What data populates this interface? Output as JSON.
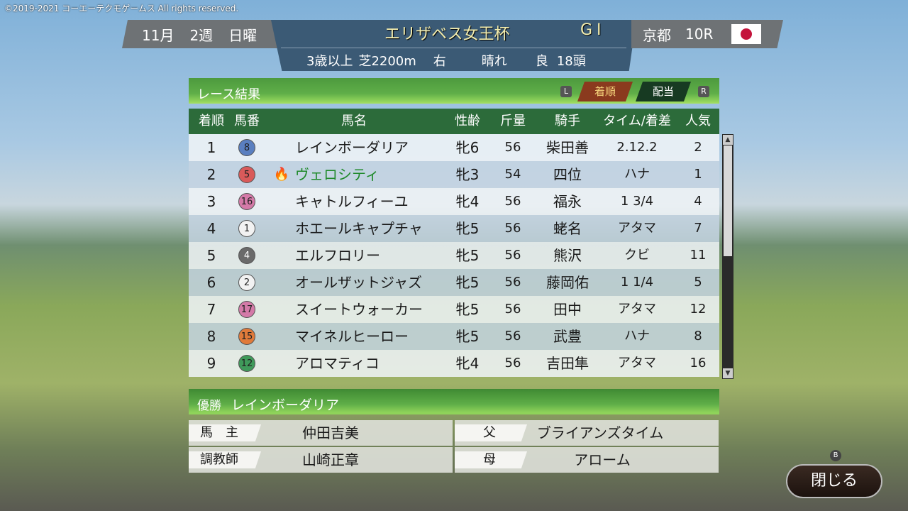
{
  "copyright": "©2019-2021 コーエーテクモゲームス All rights reserved.",
  "header": {
    "month": "11月",
    "week": "2週",
    "day": "日曜",
    "race_name": "エリザベス女王杯",
    "grade": "GⅠ",
    "conditions": [
      "3歳以上",
      "芝2200m",
      "右",
      "晴れ",
      "良",
      "18頭"
    ],
    "course": "京都",
    "race_no": "10R",
    "flag": "japan-flag"
  },
  "results_bar": {
    "title": "レース結果",
    "left_key": "L",
    "right_key": "R",
    "tabs": [
      {
        "label": "着順",
        "active": true
      },
      {
        "label": "配当",
        "active": false
      }
    ]
  },
  "columns": [
    "着順",
    "馬番",
    "馬名",
    "性齢",
    "斤量",
    "騎手",
    "タイム/着差",
    "人気"
  ],
  "gate_colors": {
    "white": "#f2f2f2",
    "black": "#6a6a6a",
    "red": "#d95a5a",
    "blue": "#5a7fc0",
    "yellow": "#e8d24a",
    "green": "#3f9a5a",
    "orange": "#e07a3a",
    "pink": "#d47aa8"
  },
  "rows": [
    {
      "pos": "1",
      "num": "8",
      "gate": "blue",
      "name": "レインボーダリア",
      "sexage": "牝6",
      "weight": "56",
      "jockey": "柴田善",
      "margin": "2.12.2",
      "pop": "2"
    },
    {
      "pos": "2",
      "num": "5",
      "gate": "red",
      "name": "ヴェロシティ",
      "highlight": true,
      "icon": "flame-icon",
      "sexage": "牝3",
      "weight": "54",
      "jockey": "四位",
      "margin": "ハナ",
      "pop": "1"
    },
    {
      "pos": "3",
      "num": "16",
      "gate": "pink",
      "name": "キャトルフィーユ",
      "sexage": "牝4",
      "weight": "56",
      "jockey": "福永",
      "margin": "1 3/4",
      "pop": "4"
    },
    {
      "pos": "4",
      "num": "1",
      "gate": "white",
      "name": "ホエールキャプチャ",
      "sexage": "牝5",
      "weight": "56",
      "jockey": "蛯名",
      "margin": "アタマ",
      "pop": "7"
    },
    {
      "pos": "5",
      "num": "4",
      "gate": "black",
      "name": "エルフロリー",
      "sexage": "牝5",
      "weight": "56",
      "jockey": "熊沢",
      "margin": "クビ",
      "pop": "11"
    },
    {
      "pos": "6",
      "num": "2",
      "gate": "white",
      "name": "オールザットジャズ",
      "sexage": "牝5",
      "weight": "56",
      "jockey": "藤岡佑",
      "margin": "1 1/4",
      "pop": "5"
    },
    {
      "pos": "7",
      "num": "17",
      "gate": "pink",
      "name": "スイートウォーカー",
      "sexage": "牝5",
      "weight": "56",
      "jockey": "田中",
      "margin": "アタマ",
      "pop": "12"
    },
    {
      "pos": "8",
      "num": "15",
      "gate": "orange",
      "name": "マイネルヒーロー",
      "sexage": "牝5",
      "weight": "56",
      "jockey": "武豊",
      "margin": "ハナ",
      "pop": "8"
    },
    {
      "pos": "9",
      "num": "12",
      "gate": "green",
      "name": "アロマティコ",
      "sexage": "牝4",
      "weight": "56",
      "jockey": "吉田隼",
      "margin": "アタマ",
      "pop": "16"
    }
  ],
  "winner": {
    "label": "優勝",
    "name": "レインボーダリア",
    "owner_label": "馬　主",
    "owner": "仲田吉美",
    "trainer_label": "調教師",
    "trainer": "山崎正章",
    "sire_label": "父",
    "sire": "ブライアンズタイム",
    "dam_label": "母",
    "dam": "アローム"
  },
  "close": {
    "key": "B",
    "label": "閉じる"
  }
}
